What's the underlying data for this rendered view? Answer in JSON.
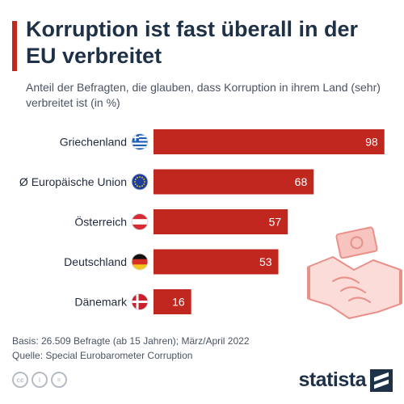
{
  "header": {
    "title": "Korruption ist fast überall in der EU verbreitet",
    "subtitle": "Anteil der Befragten, die glauben, dass Korruption in ihrem Land (sehr) verbreitet ist (in %)"
  },
  "chart_data": {
    "type": "bar",
    "orientation": "horizontal",
    "categories": [
      "Griechenland",
      "Ø Europäische Union",
      "Österreich",
      "Deutschland",
      "Dänemark"
    ],
    "values": [
      98,
      68,
      57,
      53,
      16
    ],
    "flags": [
      "greece-flag-icon",
      "eu-flag-icon",
      "austria-flag-icon",
      "germany-flag-icon",
      "denmark-flag-icon"
    ],
    "title": "Korruption ist fast überall in der EU verbreitet",
    "xlabel": "",
    "ylabel": "",
    "xlim": [
      0,
      100
    ],
    "bar_color": "#c0281f",
    "grid": false,
    "legend": "none"
  },
  "footer": {
    "basis": "Basis: 26.509 Befragte (ab 15 Jahren); März/April 2022",
    "source": "Quelle: Special Eurobarometer Corruption",
    "license_icons": [
      "cc-icon",
      "by-icon",
      "nd-icon"
    ],
    "license_labels": [
      "cc",
      "i",
      "="
    ],
    "brand": "statista"
  },
  "colors": {
    "accent": "#c0281f",
    "title": "#1f3146",
    "text": "#4a5362"
  },
  "illustration": "handshake-icon"
}
